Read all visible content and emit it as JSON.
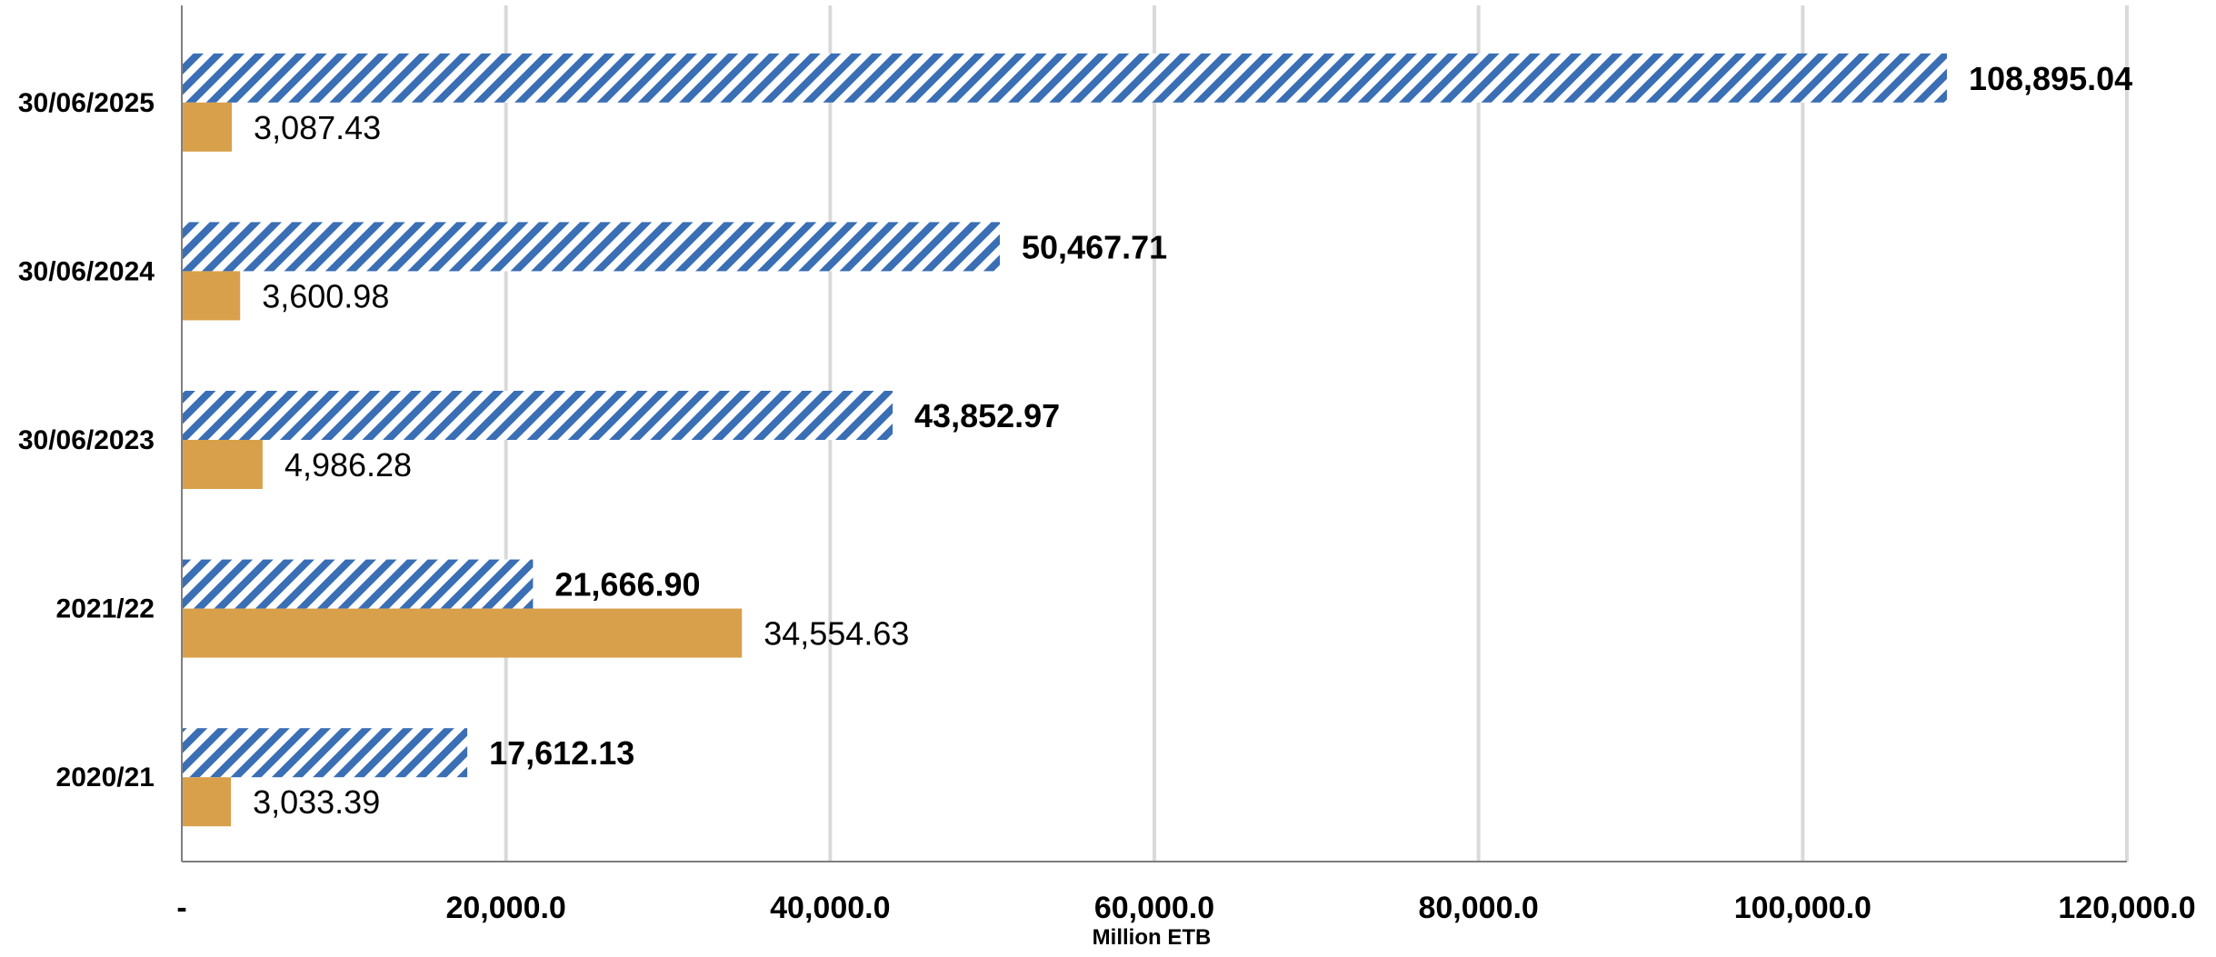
{
  "chart_data": {
    "type": "bar",
    "orientation": "horizontal",
    "categories": [
      "30/06/2025",
      "30/06/2024",
      "30/06/2023",
      "2021/22",
      "2020/21"
    ],
    "series": [
      {
        "values": [
          108895.04,
          50467.71,
          43852.97,
          21666.9,
          17612.13
        ],
        "labels": [
          "108,895.04",
          "50,467.71",
          "43,852.97",
          "21,666.90",
          "17,612.13"
        ],
        "color": "#3a6eb5",
        "pattern": "diagonal-hatch",
        "label_style": "bold"
      },
      {
        "values": [
          3087.43,
          3600.98,
          4986.28,
          34554.63,
          3033.39
        ],
        "labels": [
          "3,087.43",
          "3,600.98",
          "4,986.28",
          "34,554.63",
          "3,033.39"
        ],
        "color": "#d8a04a",
        "pattern": "solid",
        "label_style": "normal"
      }
    ],
    "x_ticks": [
      "-",
      "20,000.0",
      "40,000.0",
      "60,000.0",
      "80,000.0",
      "100,000.0",
      "120,000.0"
    ],
    "xlabel": "Million ETB",
    "ylabel": "",
    "title": "",
    "xlim": [
      0,
      120000
    ],
    "grid": "vertical",
    "legend": "none"
  }
}
